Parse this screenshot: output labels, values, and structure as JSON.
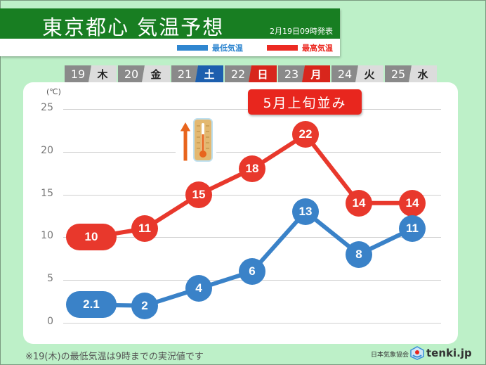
{
  "header": {
    "title": "東京都心 気温予想",
    "issued": "2月19日09時発表",
    "legend": [
      {
        "label": "最低気温",
        "color": "#2f86d0"
      },
      {
        "label": "最高気温",
        "color": "#ec2a22"
      }
    ]
  },
  "days": [
    {
      "num": "19",
      "weekday": "木",
      "type": "weekday"
    },
    {
      "num": "20",
      "weekday": "金",
      "type": "weekday"
    },
    {
      "num": "21",
      "weekday": "土",
      "type": "saturday"
    },
    {
      "num": "22",
      "weekday": "日",
      "type": "holiday"
    },
    {
      "num": "23",
      "weekday": "月",
      "type": "holiday"
    },
    {
      "num": "24",
      "weekday": "火",
      "type": "weekday"
    },
    {
      "num": "25",
      "weekday": "水",
      "type": "weekday"
    }
  ],
  "badge": "5月上旬並み",
  "footnote": "※19(木)の最低気温は9時までの実況値です",
  "credit": "日本気象協会",
  "logo": "tenki.jp",
  "chart_data": {
    "type": "line",
    "title": "東京都心 気温予想",
    "subtitle": "2月19日09時発表",
    "xlabel": "",
    "ylabel": "(℃)",
    "categories": [
      "19 木",
      "20 金",
      "21 土",
      "22 日",
      "23 月",
      "24 火",
      "25 水"
    ],
    "series": [
      {
        "name": "最高気温",
        "color": "#ec2a22",
        "values": [
          10,
          11,
          15,
          18,
          22,
          14,
          14
        ],
        "labels": [
          "10",
          "11",
          "15",
          "18",
          "22",
          "14",
          "14"
        ]
      },
      {
        "name": "最低気温",
        "color": "#3a82c8",
        "values": [
          2.1,
          2,
          4,
          6,
          13,
          8,
          11
        ],
        "labels": [
          "2.1",
          "2",
          "4",
          "6",
          "13",
          "8",
          "11"
        ]
      }
    ],
    "yticks": [
      0,
      5,
      10,
      15,
      20,
      25
    ],
    "ylim": [
      0,
      25
    ],
    "grid": true,
    "legend_position": "top-right",
    "annotations": [
      "5月上旬並み"
    ]
  }
}
